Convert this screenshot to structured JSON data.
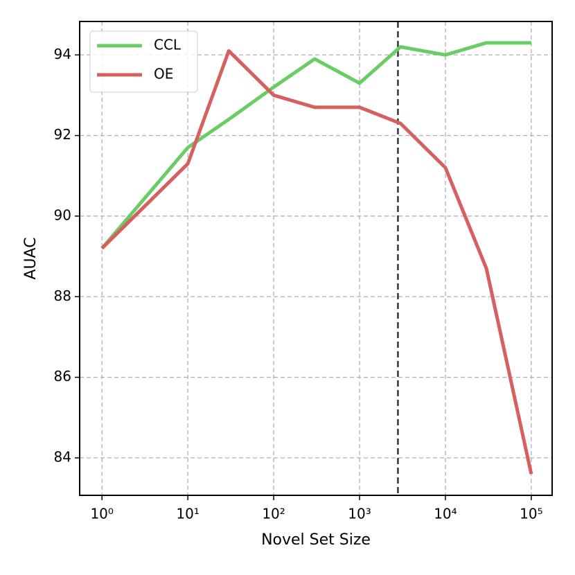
{
  "chart_data": {
    "type": "line",
    "x": [
      1,
      10,
      30,
      100,
      300,
      1000,
      3000,
      10000,
      30000,
      100000
    ],
    "series": [
      {
        "name": "CCL",
        "color": "#6acc64",
        "values": [
          89.2,
          91.7,
          92.4,
          93.2,
          93.9,
          93.3,
          94.2,
          94.0,
          94.3,
          94.3
        ]
      },
      {
        "name": "OE",
        "color": "#d65f5f",
        "values": [
          89.2,
          91.3,
          94.1,
          93.0,
          92.7,
          92.7,
          92.3,
          91.2,
          88.7,
          83.6
        ]
      }
    ],
    "xlabel": "Novel Set Size",
    "ylabel": "AUAC",
    "xlog": true,
    "grid": true,
    "legend": "upper-left",
    "xlim": [
      0.55,
      175000
    ],
    "ylim": [
      83.07,
      94.83
    ],
    "xticks": [
      {
        "value": 1,
        "label": "10⁰"
      },
      {
        "value": 10,
        "label": "10¹"
      },
      {
        "value": 100,
        "label": "10²"
      },
      {
        "value": 1000,
        "label": "10³"
      },
      {
        "value": 10000,
        "label": "10⁴"
      },
      {
        "value": 100000,
        "label": "10⁵"
      }
    ],
    "yticks": [
      84,
      86,
      88,
      90,
      92,
      94
    ],
    "vline": {
      "x": 2800,
      "color": "#333333"
    }
  }
}
